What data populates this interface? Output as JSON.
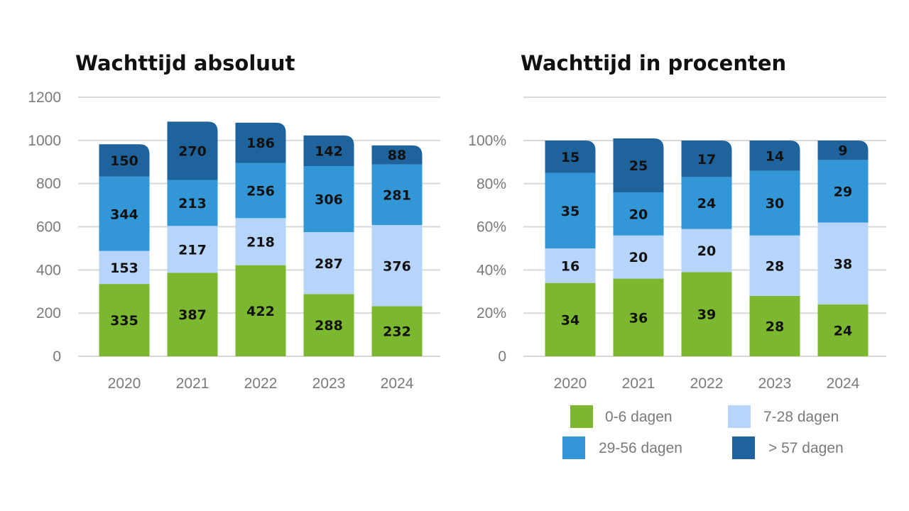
{
  "colors": {
    "c0": "#7cb82f",
    "c1": "#b7d5fb",
    "c2": "#3396d6",
    "c3": "#1f639c"
  },
  "legend": [
    "0-6 dagen",
    "7-28 dagen",
    "29-56 dagen",
    "> 57 dagen"
  ],
  "chart_data": [
    {
      "type": "bar",
      "stacked": true,
      "title": "Wachttijd absoluut",
      "categories": [
        "2020",
        "2021",
        "2022",
        "2023",
        "2024"
      ],
      "ylim": [
        0,
        1200
      ],
      "yticks": [
        "0",
        "200",
        "400",
        "600",
        "800",
        "1000",
        "1200"
      ],
      "ytick_values": [
        0,
        200,
        400,
        600,
        800,
        1000,
        1200
      ],
      "grid": true,
      "series": [
        {
          "name": "0-6 dagen",
          "values": [
            335,
            387,
            422,
            288,
            232
          ]
        },
        {
          "name": "7-28 dagen",
          "values": [
            153,
            217,
            218,
            287,
            376
          ]
        },
        {
          "name": "29-56 dagen",
          "values": [
            344,
            213,
            256,
            306,
            281
          ]
        },
        {
          "name": "> 57 dagen",
          "values": [
            150,
            270,
            186,
            142,
            88
          ]
        }
      ]
    },
    {
      "type": "bar",
      "stacked": true,
      "title": "Wachttijd in procenten",
      "categories": [
        "2020",
        "2021",
        "2022",
        "2023",
        "2024"
      ],
      "ylim": [
        0,
        100
      ],
      "yticks": [
        "0",
        "20%",
        "40%",
        "60%",
        "80%",
        "100%"
      ],
      "ytick_values": [
        0,
        20,
        40,
        60,
        80,
        100
      ],
      "grid": true,
      "legend_position": "bottom",
      "series": [
        {
          "name": "0-6 dagen",
          "values": [
            34,
            36,
            39,
            28,
            24
          ]
        },
        {
          "name": "7-28 dagen",
          "values": [
            16,
            20,
            20,
            28,
            38
          ]
        },
        {
          "name": "29-56 dagen",
          "values": [
            35,
            20,
            24,
            30,
            29
          ]
        },
        {
          "name": "> 57 dagen",
          "values": [
            15,
            25,
            17,
            14,
            9
          ]
        }
      ]
    }
  ]
}
